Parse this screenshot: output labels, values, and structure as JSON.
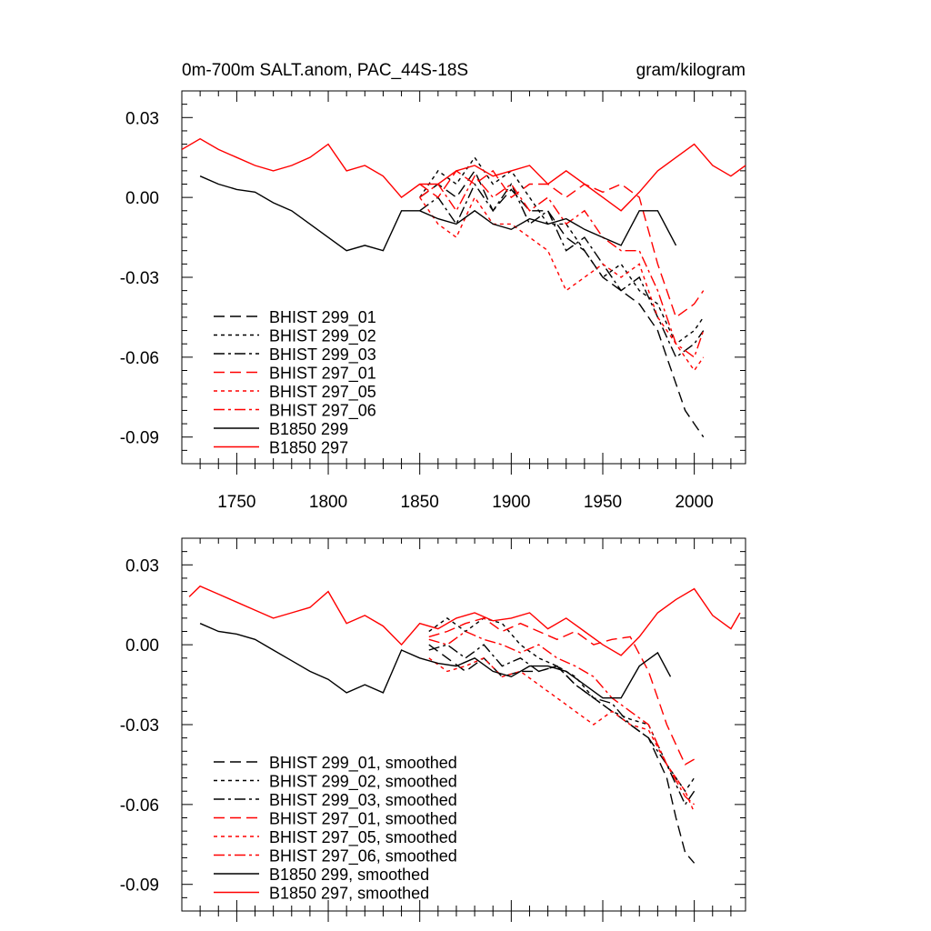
{
  "title_left": "0m-700m SALT.anom, PAC_44S-18S",
  "title_right": "gram/kilogram",
  "chart_data": [
    {
      "type": "line",
      "panel": "top",
      "xlim": [
        1720,
        2028
      ],
      "ylim": [
        -0.1,
        0.04
      ],
      "xticks": [
        1750,
        1800,
        1850,
        1900,
        1950,
        2000
      ],
      "xtick_labels": [
        "1750",
        "1800",
        "1850",
        "1900",
        "1950",
        "2000"
      ],
      "yticks": [
        0.03,
        0.0,
        -0.03,
        -0.06,
        -0.09
      ],
      "ytick_labels": [
        "0.03",
        "0.00",
        "-0.03",
        "-0.06",
        "-0.09"
      ],
      "legend_position": "bottom-left",
      "series": [
        {
          "name": "BHIST 299_01",
          "color": "#000000",
          "dash": "long-dash",
          "x": [
            1850,
            1860,
            1870,
            1880,
            1890,
            1900,
            1910,
            1920,
            1930,
            1940,
            1950,
            1960,
            1970,
            1980,
            1985,
            1990,
            1995,
            2000,
            2005
          ],
          "y": [
            0.0,
            0.005,
            0.0,
            0.01,
            -0.005,
            0.003,
            -0.005,
            -0.005,
            -0.015,
            -0.02,
            -0.03,
            -0.035,
            -0.04,
            -0.05,
            -0.06,
            -0.07,
            -0.08,
            -0.085,
            -0.09
          ]
        },
        {
          "name": "BHIST 299_02",
          "color": "#000000",
          "dash": "short-dash",
          "x": [
            1850,
            1860,
            1870,
            1880,
            1890,
            1900,
            1910,
            1920,
            1930,
            1940,
            1950,
            1960,
            1970,
            1980,
            1990,
            2000,
            2005
          ],
          "y": [
            0.0,
            0.01,
            0.005,
            0.015,
            0.005,
            0.01,
            0.0,
            -0.01,
            -0.01,
            -0.02,
            -0.03,
            -0.025,
            -0.035,
            -0.04,
            -0.055,
            -0.05,
            -0.045
          ]
        },
        {
          "name": "BHIST 299_03",
          "color": "#000000",
          "dash": "dash-dot",
          "x": [
            1850,
            1860,
            1870,
            1880,
            1890,
            1900,
            1910,
            1920,
            1930,
            1940,
            1950,
            1960,
            1970,
            1980,
            1990,
            2000,
            2005
          ],
          "y": [
            -0.005,
            0.0,
            -0.01,
            0.005,
            -0.005,
            0.005,
            -0.01,
            -0.005,
            -0.02,
            -0.015,
            -0.025,
            -0.035,
            -0.03,
            -0.045,
            -0.06,
            -0.055,
            -0.05
          ]
        },
        {
          "name": "BHIST 297_01",
          "color": "#ff0000",
          "dash": "long-dash",
          "x": [
            1850,
            1860,
            1870,
            1880,
            1890,
            1900,
            1910,
            1920,
            1930,
            1940,
            1950,
            1960,
            1970,
            1980,
            1990,
            2000,
            2005
          ],
          "y": [
            0.005,
            0.0,
            0.01,
            0.005,
            0.01,
            0.0,
            0.005,
            0.005,
            0.0,
            0.005,
            0.002,
            0.005,
            0.0,
            -0.025,
            -0.045,
            -0.04,
            -0.035
          ]
        },
        {
          "name": "BHIST 297_05",
          "color": "#ff0000",
          "dash": "short-dash",
          "x": [
            1850,
            1860,
            1870,
            1880,
            1890,
            1900,
            1910,
            1920,
            1930,
            1940,
            1950,
            1960,
            1970,
            1980,
            1990,
            2000,
            2005
          ],
          "y": [
            0.0,
            -0.01,
            -0.015,
            0.0,
            -0.01,
            -0.01,
            -0.015,
            -0.02,
            -0.035,
            -0.03,
            -0.025,
            -0.03,
            -0.025,
            -0.045,
            -0.055,
            -0.065,
            -0.06
          ]
        },
        {
          "name": "BHIST 297_06",
          "color": "#ff0000",
          "dash": "dash-dot",
          "x": [
            1850,
            1860,
            1870,
            1880,
            1890,
            1900,
            1910,
            1920,
            1930,
            1940,
            1950,
            1960,
            1970,
            1980,
            1990,
            2000,
            2005
          ],
          "y": [
            0.0,
            0.005,
            -0.005,
            0.008,
            0.0,
            0.005,
            -0.005,
            0.0,
            -0.01,
            -0.005,
            -0.015,
            -0.02,
            -0.02,
            -0.035,
            -0.055,
            -0.06,
            -0.05
          ]
        },
        {
          "name": "B1850 299",
          "color": "#000000",
          "dash": "solid",
          "x": [
            1730,
            1740,
            1750,
            1760,
            1770,
            1780,
            1790,
            1800,
            1810,
            1820,
            1830,
            1840,
            1850,
            1860,
            1870,
            1880,
            1890,
            1900,
            1910,
            1920,
            1930,
            1940,
            1950,
            1960,
            1970,
            1980,
            1990
          ],
          "y": [
            0.008,
            0.005,
            0.003,
            0.002,
            -0.002,
            -0.005,
            -0.01,
            -0.015,
            -0.02,
            -0.018,
            -0.02,
            -0.005,
            -0.005,
            -0.008,
            -0.01,
            -0.005,
            -0.01,
            -0.012,
            -0.008,
            -0.01,
            -0.008,
            -0.012,
            -0.015,
            -0.018,
            -0.005,
            -0.005,
            -0.018
          ]
        },
        {
          "name": "B1850 297",
          "color": "#ff0000",
          "dash": "solid",
          "x": [
            1720,
            1730,
            1740,
            1750,
            1760,
            1770,
            1780,
            1790,
            1800,
            1810,
            1820,
            1830,
            1840,
            1850,
            1860,
            1870,
            1880,
            1890,
            1900,
            1910,
            1920,
            1930,
            1940,
            1950,
            1960,
            1970,
            1980,
            1990,
            2000,
            2010,
            2020,
            2028
          ],
          "y": [
            0.018,
            0.022,
            0.018,
            0.015,
            0.012,
            0.01,
            0.012,
            0.015,
            0.02,
            0.01,
            0.012,
            0.008,
            0.0,
            0.005,
            0.005,
            0.01,
            0.012,
            0.008,
            0.01,
            0.012,
            0.005,
            0.01,
            0.005,
            0.0,
            -0.005,
            0.002,
            0.01,
            0.015,
            0.02,
            0.012,
            0.008,
            0.012
          ]
        }
      ]
    },
    {
      "type": "line",
      "panel": "bottom",
      "xlim": [
        1720,
        2028
      ],
      "ylim": [
        -0.1,
        0.04
      ],
      "xticks": [
        1750,
        1800,
        1850,
        1900,
        1950,
        2000
      ],
      "yticks": [
        0.03,
        0.0,
        -0.03,
        -0.06,
        -0.09
      ],
      "ytick_labels": [
        "0.03",
        "0.00",
        "-0.03",
        "-0.06",
        "-0.09"
      ],
      "legend_position": "bottom-left",
      "series": [
        {
          "name": "BHIST 299_01, smoothed",
          "color": "#000000",
          "dash": "long-dash",
          "x": [
            1855,
            1865,
            1875,
            1885,
            1895,
            1905,
            1915,
            1925,
            1935,
            1945,
            1955,
            1965,
            1975,
            1985,
            1990,
            1995,
            2000
          ],
          "y": [
            0.0,
            -0.005,
            -0.01,
            -0.005,
            -0.012,
            -0.01,
            -0.01,
            -0.008,
            -0.015,
            -0.02,
            -0.025,
            -0.03,
            -0.035,
            -0.05,
            -0.065,
            -0.078,
            -0.082
          ]
        },
        {
          "name": "BHIST 299_02, smoothed",
          "color": "#000000",
          "dash": "short-dash",
          "x": [
            1855,
            1865,
            1875,
            1885,
            1895,
            1905,
            1915,
            1925,
            1935,
            1945,
            1955,
            1965,
            1975,
            1985,
            1995,
            2000
          ],
          "y": [
            0.005,
            0.01,
            0.005,
            0.01,
            0.008,
            0.0,
            -0.005,
            -0.008,
            -0.012,
            -0.02,
            -0.025,
            -0.028,
            -0.03,
            -0.045,
            -0.055,
            -0.05
          ]
        },
        {
          "name": "BHIST 299_03, smoothed",
          "color": "#000000",
          "dash": "dash-dot",
          "x": [
            1855,
            1865,
            1875,
            1885,
            1895,
            1905,
            1915,
            1925,
            1935,
            1945,
            1955,
            1965,
            1975,
            1985,
            1995,
            2000
          ],
          "y": [
            -0.002,
            0.0,
            -0.005,
            0.0,
            -0.008,
            -0.005,
            -0.01,
            -0.008,
            -0.015,
            -0.02,
            -0.022,
            -0.03,
            -0.035,
            -0.045,
            -0.06,
            -0.055
          ]
        },
        {
          "name": "BHIST 297_01, smoothed",
          "color": "#ff0000",
          "dash": "long-dash",
          "x": [
            1855,
            1865,
            1875,
            1885,
            1895,
            1905,
            1915,
            1925,
            1935,
            1945,
            1955,
            1965,
            1975,
            1980,
            1985,
            1995,
            2000
          ],
          "y": [
            0.003,
            0.005,
            0.008,
            0.01,
            0.005,
            0.008,
            0.005,
            0.002,
            0.005,
            0.0,
            0.002,
            0.003,
            -0.01,
            -0.02,
            -0.03,
            -0.045,
            -0.043
          ]
        },
        {
          "name": "BHIST 297_05, smoothed",
          "color": "#ff0000",
          "dash": "short-dash",
          "x": [
            1855,
            1865,
            1875,
            1885,
            1895,
            1905,
            1915,
            1925,
            1935,
            1945,
            1955,
            1965,
            1975,
            1985,
            1995,
            2000
          ],
          "y": [
            -0.005,
            -0.01,
            -0.008,
            -0.005,
            -0.012,
            -0.01,
            -0.015,
            -0.02,
            -0.025,
            -0.03,
            -0.025,
            -0.03,
            -0.032,
            -0.045,
            -0.055,
            -0.063
          ]
        },
        {
          "name": "BHIST 297_06, smoothed",
          "color": "#ff0000",
          "dash": "dash-dot",
          "x": [
            1855,
            1865,
            1875,
            1885,
            1895,
            1905,
            1915,
            1925,
            1935,
            1945,
            1955,
            1965,
            1975,
            1985,
            1995,
            2000
          ],
          "y": [
            0.002,
            0.0,
            0.005,
            0.002,
            0.0,
            -0.003,
            0.0,
            -0.005,
            -0.008,
            -0.012,
            -0.02,
            -0.025,
            -0.03,
            -0.045,
            -0.057,
            -0.06
          ]
        },
        {
          "name": "B1850 299, smoothed",
          "color": "#000000",
          "dash": "solid",
          "x": [
            1730,
            1740,
            1750,
            1760,
            1770,
            1780,
            1790,
            1800,
            1810,
            1820,
            1830,
            1840,
            1850,
            1860,
            1870,
            1880,
            1890,
            1900,
            1910,
            1920,
            1930,
            1940,
            1950,
            1960,
            1970,
            1980,
            1987
          ],
          "y": [
            0.008,
            0.005,
            0.004,
            0.002,
            -0.002,
            -0.006,
            -0.01,
            -0.013,
            -0.018,
            -0.015,
            -0.018,
            -0.002,
            -0.005,
            -0.007,
            -0.008,
            -0.005,
            -0.01,
            -0.012,
            -0.008,
            -0.008,
            -0.01,
            -0.015,
            -0.02,
            -0.02,
            -0.008,
            -0.003,
            -0.012
          ]
        },
        {
          "name": "B1850 297, smoothed",
          "color": "#ff0000",
          "dash": "solid",
          "x": [
            1724,
            1730,
            1740,
            1750,
            1760,
            1770,
            1780,
            1790,
            1800,
            1810,
            1820,
            1830,
            1840,
            1850,
            1860,
            1870,
            1880,
            1890,
            1900,
            1910,
            1920,
            1930,
            1940,
            1950,
            1960,
            1970,
            1980,
            1990,
            2000,
            2010,
            2020,
            2025
          ],
          "y": [
            0.018,
            0.022,
            0.019,
            0.016,
            0.013,
            0.01,
            0.012,
            0.014,
            0.02,
            0.008,
            0.011,
            0.007,
            0.0,
            0.008,
            0.006,
            0.01,
            0.012,
            0.009,
            0.01,
            0.012,
            0.006,
            0.01,
            0.005,
            0.0,
            -0.004,
            0.003,
            0.012,
            0.017,
            0.021,
            0.011,
            0.006,
            0.012
          ]
        }
      ]
    }
  ]
}
